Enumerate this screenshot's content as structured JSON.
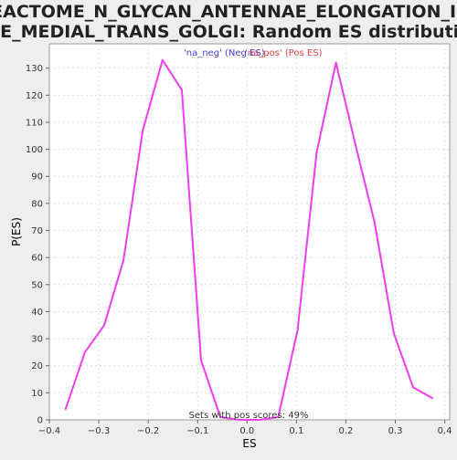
{
  "chart_data": {
    "type": "line",
    "title_lines": [
      "REACTOME_N_GLYCAN_ANTENNAE_ELONGATION_IN_",
      "THE_MEDIAL_TRANS_GOLGI: Random ES distribution"
    ],
    "xlabel": "ES",
    "ylabel": "P(ES)",
    "xlim": [
      -0.4,
      0.41
    ],
    "ylim": [
      0,
      139
    ],
    "x_ticks": [
      -0.4,
      -0.3,
      -0.2,
      -0.1,
      0.0,
      0.1,
      0.2,
      0.3,
      0.4
    ],
    "x_tick_labels": [
      "−0.4",
      "−0.3",
      "−0.2",
      "−0.1",
      "0.0",
      "0.1",
      "0.2",
      "0.3",
      "0.4"
    ],
    "y_ticks": [
      0,
      10,
      20,
      30,
      40,
      50,
      60,
      70,
      80,
      90,
      100,
      110,
      120,
      130
    ],
    "y_tick_labels": [
      "0",
      "10",
      "20",
      "30",
      "40",
      "50",
      "60",
      "70",
      "80",
      "90",
      "100",
      "110",
      "120",
      "130"
    ],
    "grid": true,
    "legend": [
      {
        "label": "'na_neg' (Neg ES)",
        "color": "#3f3fdf"
      },
      {
        "label": "'na_pos' (Pos ES)",
        "color": "#df3f3f"
      }
    ],
    "legend_placement": "top-center",
    "annotation": "Sets with pos scores: 49%",
    "series": [
      {
        "color": "#ee3dee",
        "x": [
          -0.367,
          -0.328,
          -0.289,
          -0.25,
          -0.211,
          -0.171,
          -0.132,
          -0.093,
          -0.054,
          -0.015,
          0.024,
          0.063,
          0.102,
          0.141,
          0.18,
          0.219,
          0.258,
          0.297,
          0.336,
          0.375
        ],
        "y": [
          4,
          25,
          35,
          59,
          107,
          133,
          122,
          22,
          1,
          0,
          0,
          1,
          33,
          99,
          132,
          102,
          73,
          32,
          12,
          8
        ]
      }
    ]
  }
}
